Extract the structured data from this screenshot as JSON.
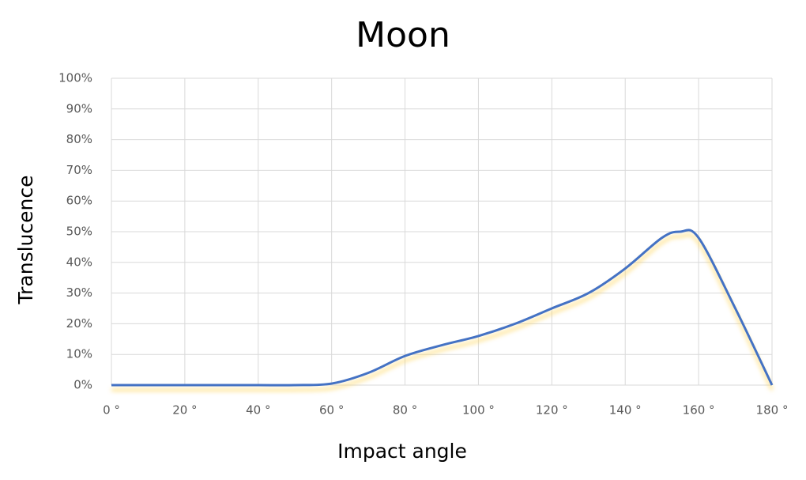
{
  "chart_data": {
    "type": "line",
    "title": "Moon",
    "x_label": "Impact angle",
    "y_label": "Translucence",
    "x": [
      0,
      10,
      20,
      30,
      40,
      50,
      60,
      70,
      80,
      90,
      100,
      110,
      120,
      130,
      140,
      150,
      155,
      160,
      170,
      180
    ],
    "series": [
      {
        "name": "Moon",
        "color": "#4472c4",
        "values": [
          0,
          0,
          0,
          0,
          0,
          0,
          0.5,
          4,
          9.5,
          13,
          16,
          20,
          25,
          30,
          38,
          48,
          50,
          48,
          25,
          0
        ]
      }
    ],
    "xlim": [
      0,
      180
    ],
    "xticks": [
      {
        "value": 0,
        "label": "0 °"
      },
      {
        "value": 20,
        "label": "20 °"
      },
      {
        "value": 40,
        "label": "40 °"
      },
      {
        "value": 60,
        "label": "60 °"
      },
      {
        "value": 80,
        "label": "80 °"
      },
      {
        "value": 100,
        "label": "100 °"
      },
      {
        "value": 120,
        "label": "120 °"
      },
      {
        "value": 140,
        "label": "140 °"
      },
      {
        "value": 160,
        "label": "160 °"
      },
      {
        "value": 180,
        "label": "180 °"
      }
    ],
    "ylim": [
      0,
      100
    ],
    "yticks": [
      {
        "value": 0,
        "label": "0%"
      },
      {
        "value": 10,
        "label": "10%"
      },
      {
        "value": 20,
        "label": "20%"
      },
      {
        "value": 30,
        "label": "30%"
      },
      {
        "value": 40,
        "label": "40%"
      },
      {
        "value": 50,
        "label": "50%"
      },
      {
        "value": 60,
        "label": "60%"
      },
      {
        "value": 70,
        "label": "70%"
      },
      {
        "value": 80,
        "label": "80%"
      },
      {
        "value": 90,
        "label": "90%"
      },
      {
        "value": 100,
        "label": "100%"
      }
    ],
    "grid": true
  }
}
